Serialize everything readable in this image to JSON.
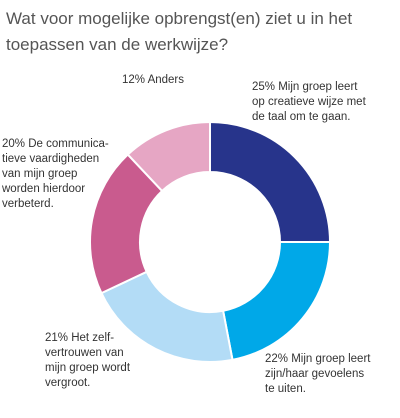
{
  "chart_data": {
    "type": "pie",
    "title": "Wat voor mogelijke opbrengst(en) ziet u in het toepassen van de werkwijze?",
    "slices": [
      {
        "value": 25,
        "label": "25% Mijn groep leert\nop creatieve wijze met\nde taal om te gaan.",
        "color": "#27348b"
      },
      {
        "value": 22,
        "label": "22% Mijn groep leert\nzijn/haar gevoelens\nte uiten.",
        "color": "#00a8e8"
      },
      {
        "value": 21,
        "label": "21% Het zelf-\nvertrouwen van\nmijn groep wordt\nvergroot.",
        "color": "#b3dcf6"
      },
      {
        "value": 20,
        "label": "20% De communica-\ntieve vaardigheden\nvan mijn groep\nworden hierdoor\nverbeterd.",
        "color": "#c95b8e"
      },
      {
        "value": 12,
        "label": "12% Anders",
        "color": "#e6a6c4"
      }
    ]
  }
}
